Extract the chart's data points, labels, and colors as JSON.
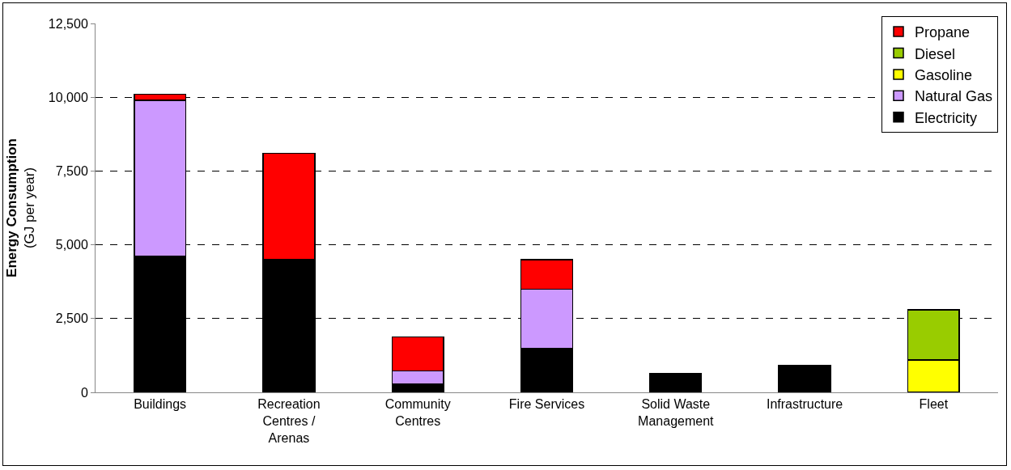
{
  "chart_data": {
    "type": "bar",
    "stacked": true,
    "ylabel": "Energy Consumption\n(GJ per year)",
    "categories": [
      "Buildings",
      "Recreation\nCentres /\nArenas",
      "Community\nCentres",
      "Fire Services",
      "Solid Waste\nManagement",
      "Infrastructure",
      "Fleet"
    ],
    "series": [
      {
        "name": "Electricity",
        "color": "#000000",
        "values": [
          4600,
          4500,
          280,
          1500,
          650,
          925,
          null
        ]
      },
      {
        "name": "Natural Gas",
        "color": "#cc99ff",
        "values": [
          5300,
          null,
          450,
          2000,
          null,
          null,
          null
        ]
      },
      {
        "name": "Gasoline",
        "color": "#ffff00",
        "values": [
          null,
          null,
          null,
          null,
          null,
          null,
          1100
        ]
      },
      {
        "name": "Diesel",
        "color": "#99cc00",
        "values": [
          null,
          null,
          null,
          null,
          null,
          null,
          1700
        ]
      },
      {
        "name": "Propane",
        "color": "#ff0000",
        "values": [
          200,
          3600,
          1150,
          1000,
          null,
          null,
          null
        ]
      }
    ],
    "ylim": [
      0,
      12500
    ],
    "yticks": [
      {
        "value": 0,
        "label": "0"
      },
      {
        "value": 2500,
        "label": "2,500"
      },
      {
        "value": 5000,
        "label": "5,000"
      },
      {
        "value": 7500,
        "label": "7,500"
      },
      {
        "value": 10000,
        "label": "10,000"
      },
      {
        "value": 12500,
        "label": "12,500"
      }
    ],
    "grid": "y",
    "legend": "top right"
  }
}
